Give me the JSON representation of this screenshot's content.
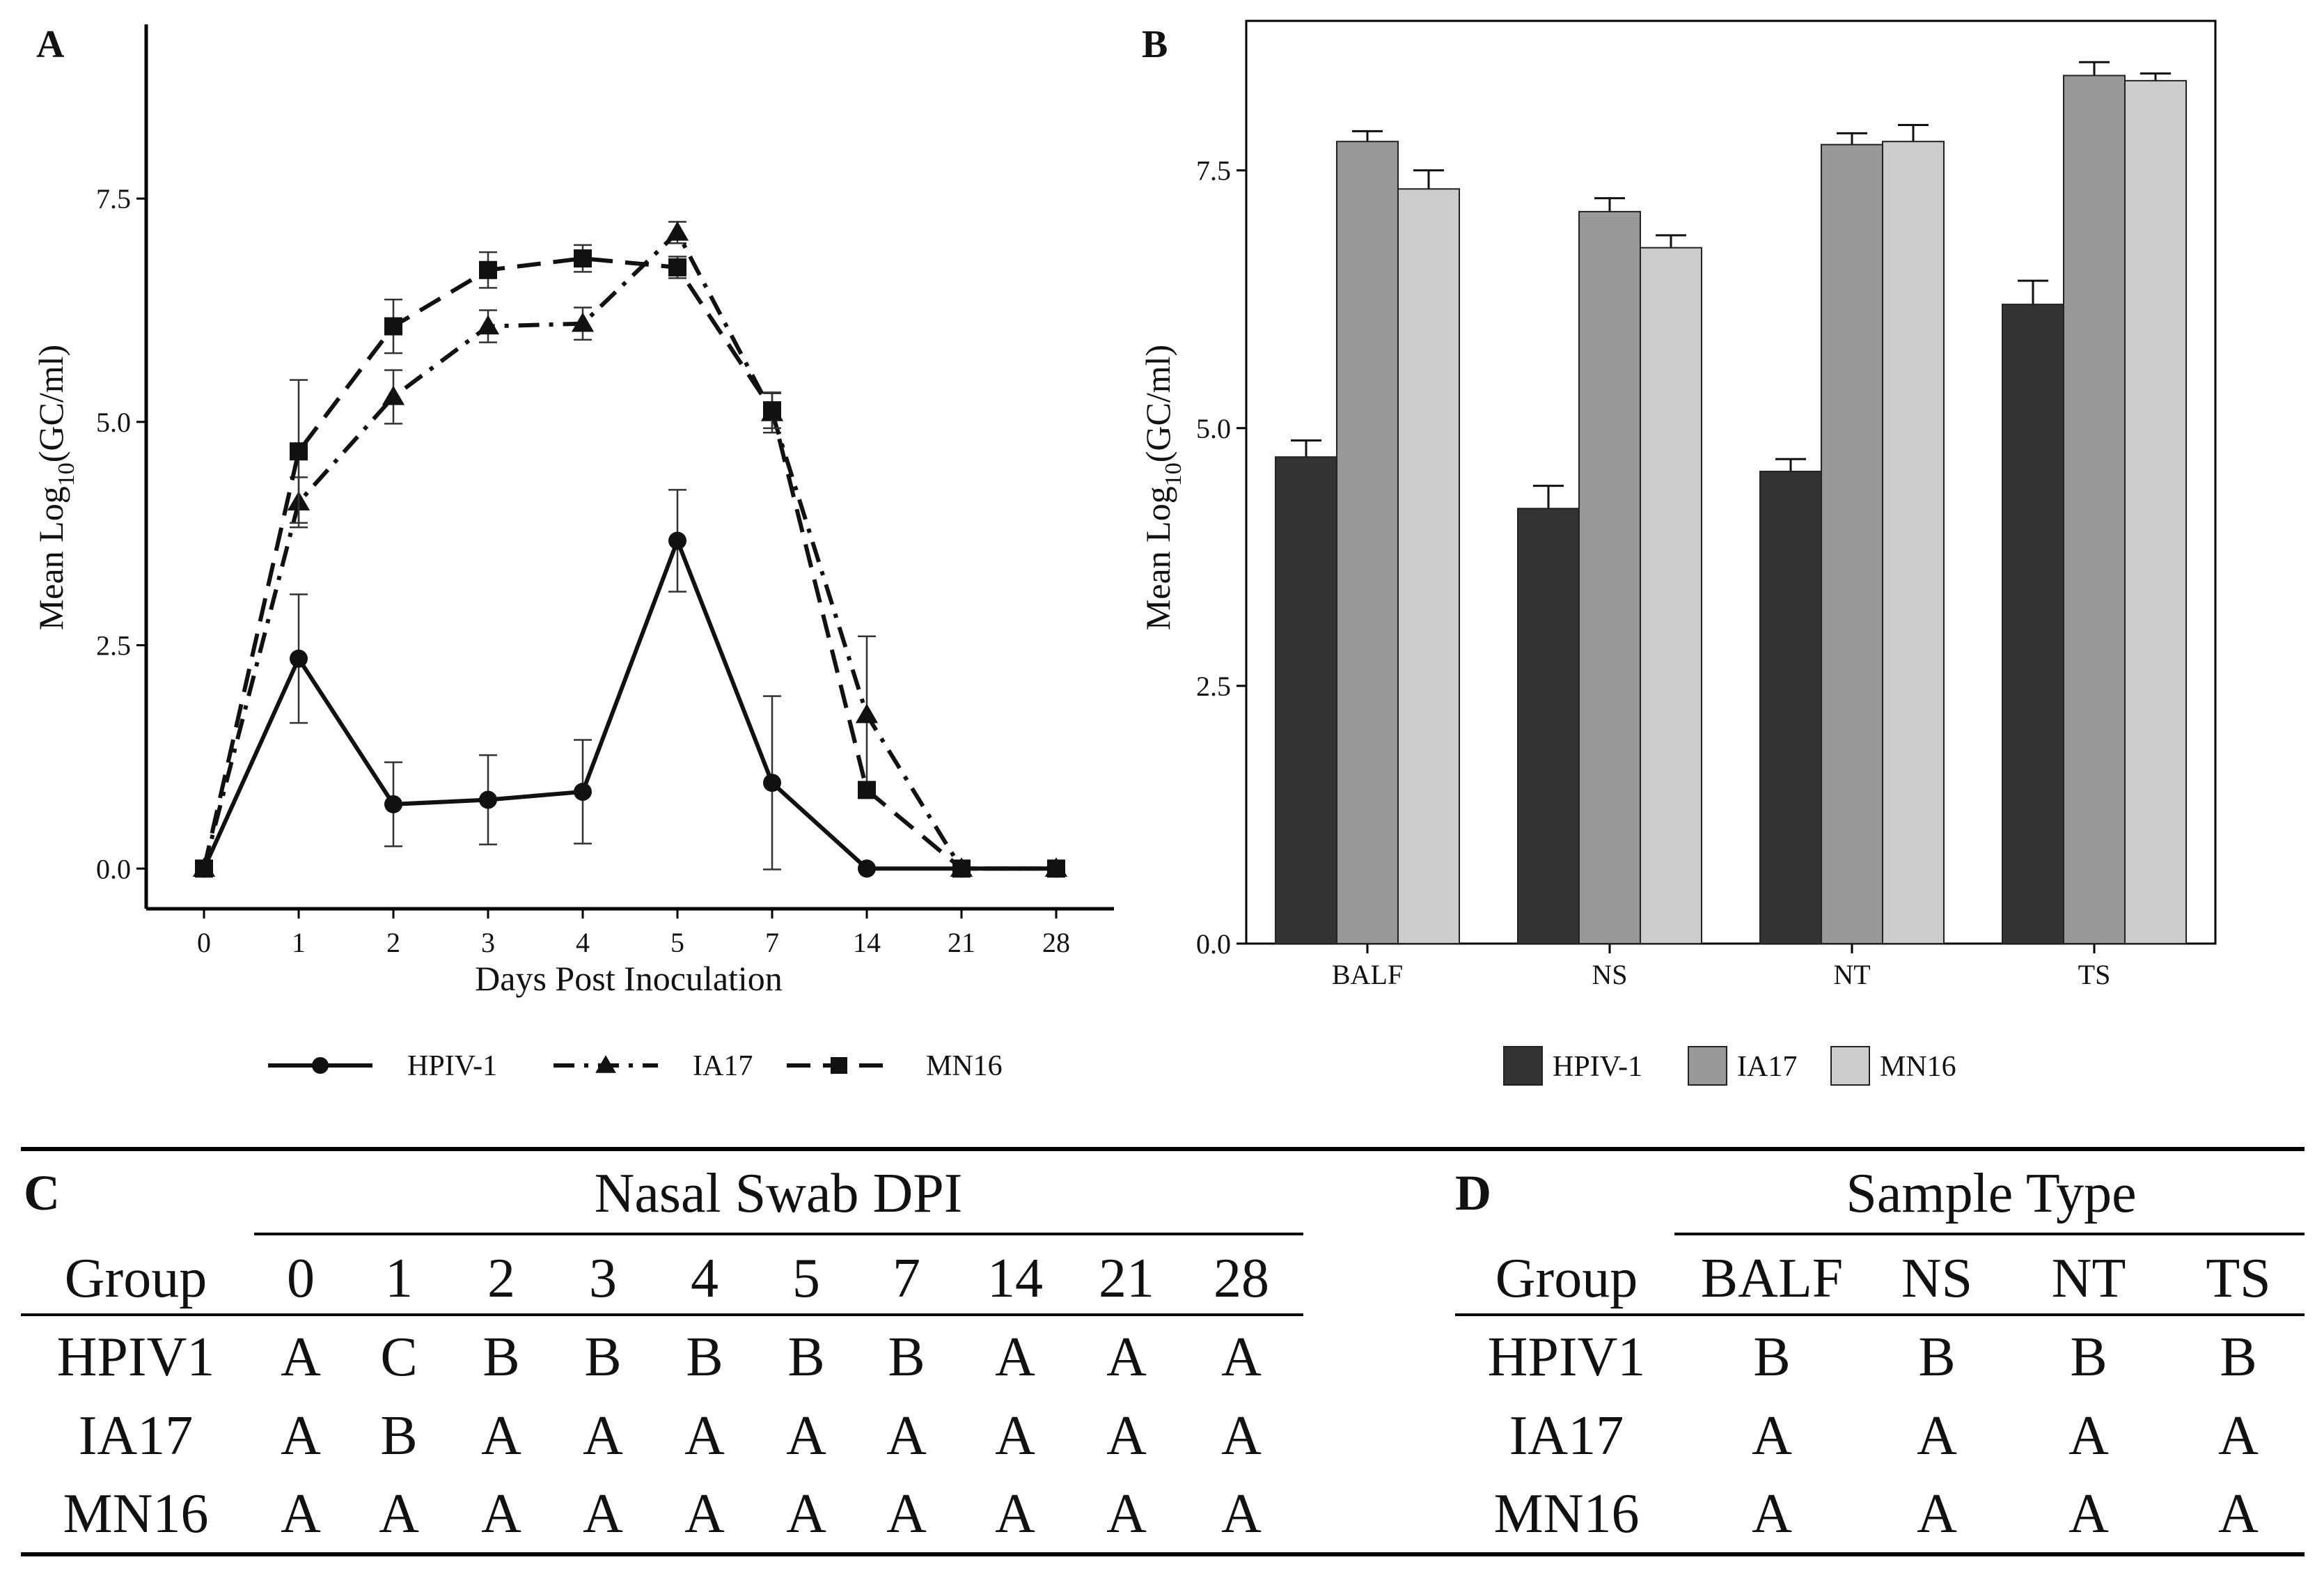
{
  "chart_data": [
    {
      "type": "line",
      "panel": "A",
      "x": [
        "0",
        "1",
        "2",
        "3",
        "4",
        "5",
        "7",
        "14",
        "21",
        "28"
      ],
      "xlabel": "Days Post Inoculation",
      "ylabel_prefix": "Mean Log",
      "ylabel_sub": "10",
      "ylabel_suffix": "(GC/ml)",
      "ylim": [
        -0.45,
        9.45
      ],
      "yticks": [
        "0.0",
        "2.5",
        "5.0",
        "7.5"
      ],
      "grid": false,
      "legend": "bottom",
      "series": [
        {
          "name": "HPIV-1",
          "marker": "circle",
          "dash": "solid",
          "values": [
            0.0,
            2.35,
            0.72,
            0.77,
            0.86,
            3.67,
            0.96,
            0.0,
            0.0,
            0.0
          ],
          "errors": [
            0.0,
            0.72,
            0.47,
            0.5,
            0.58,
            0.57,
            0.97,
            0.0,
            0.0,
            0.0
          ]
        },
        {
          "name": "IA17",
          "marker": "triangle",
          "dash": "dashdot",
          "values": [
            0.0,
            4.1,
            5.28,
            6.07,
            6.1,
            7.12,
            5.1,
            1.72,
            0.0,
            0.0
          ],
          "errors": [
            0.0,
            0.28,
            0.3,
            0.18,
            0.18,
            0.12,
            0.22,
            0.88,
            0.0,
            0.0
          ]
        },
        {
          "name": "MN16",
          "marker": "square",
          "dash": "dashed",
          "values": [
            0.0,
            4.67,
            6.07,
            6.7,
            6.83,
            6.73,
            5.13,
            0.88,
            0.0,
            0.0
          ],
          "errors": [
            0.0,
            0.8,
            0.3,
            0.2,
            0.15,
            0.12,
            0.2,
            0.0,
            0.0,
            0.0
          ]
        }
      ]
    },
    {
      "type": "bar",
      "panel": "B",
      "categories": [
        "BALF",
        "NS",
        "NT",
        "TS"
      ],
      "xlabel": "",
      "ylabel_prefix": "Mean Log",
      "ylabel_sub": "10",
      "ylabel_suffix": "(GC/ml)",
      "ylim": [
        0,
        8.95
      ],
      "yticks": [
        "0.0",
        "2.5",
        "5.0",
        "7.5"
      ],
      "grid": false,
      "legend": "bottom",
      "series": [
        {
          "name": "HPIV-1",
          "color": "#333333",
          "values": [
            4.72,
            4.22,
            4.58,
            6.2
          ],
          "errors": [
            0.16,
            0.22,
            0.12,
            0.23
          ]
        },
        {
          "name": "IA17",
          "color": "#999999",
          "values": [
            7.78,
            7.1,
            7.75,
            8.42
          ],
          "errors": [
            0.1,
            0.13,
            0.11,
            0.13
          ]
        },
        {
          "name": "MN16",
          "color": "#cccccc",
          "values": [
            7.32,
            6.75,
            7.78,
            8.37
          ],
          "errors": [
            0.18,
            0.12,
            0.16,
            0.07
          ]
        }
      ]
    }
  ],
  "table_c": {
    "letter": "C",
    "title": "Nasal Swab DPI",
    "group_header": "Group",
    "columns": [
      "0",
      "1",
      "2",
      "3",
      "4",
      "5",
      "7",
      "14",
      "21",
      "28"
    ],
    "rows": [
      {
        "group": "HPIV1",
        "values": [
          "A",
          "C",
          "B",
          "B",
          "B",
          "B",
          "B",
          "A",
          "A",
          "A"
        ]
      },
      {
        "group": "IA17",
        "values": [
          "A",
          "B",
          "A",
          "A",
          "A",
          "A",
          "A",
          "A",
          "A",
          "A"
        ]
      },
      {
        "group": "MN16",
        "values": [
          "A",
          "A",
          "A",
          "A",
          "A",
          "A",
          "A",
          "A",
          "A",
          "A"
        ]
      }
    ]
  },
  "table_d": {
    "letter": "D",
    "title": "Sample Type",
    "group_header": "Group",
    "columns": [
      "BALF",
      "NS",
      "NT",
      "TS"
    ],
    "rows": [
      {
        "group": "HPIV1",
        "values": [
          "B",
          "B",
          "B",
          "B"
        ]
      },
      {
        "group": "IA17",
        "values": [
          "A",
          "A",
          "A",
          "A"
        ]
      },
      {
        "group": "MN16",
        "values": [
          "A",
          "A",
          "A",
          "A"
        ]
      }
    ]
  }
}
